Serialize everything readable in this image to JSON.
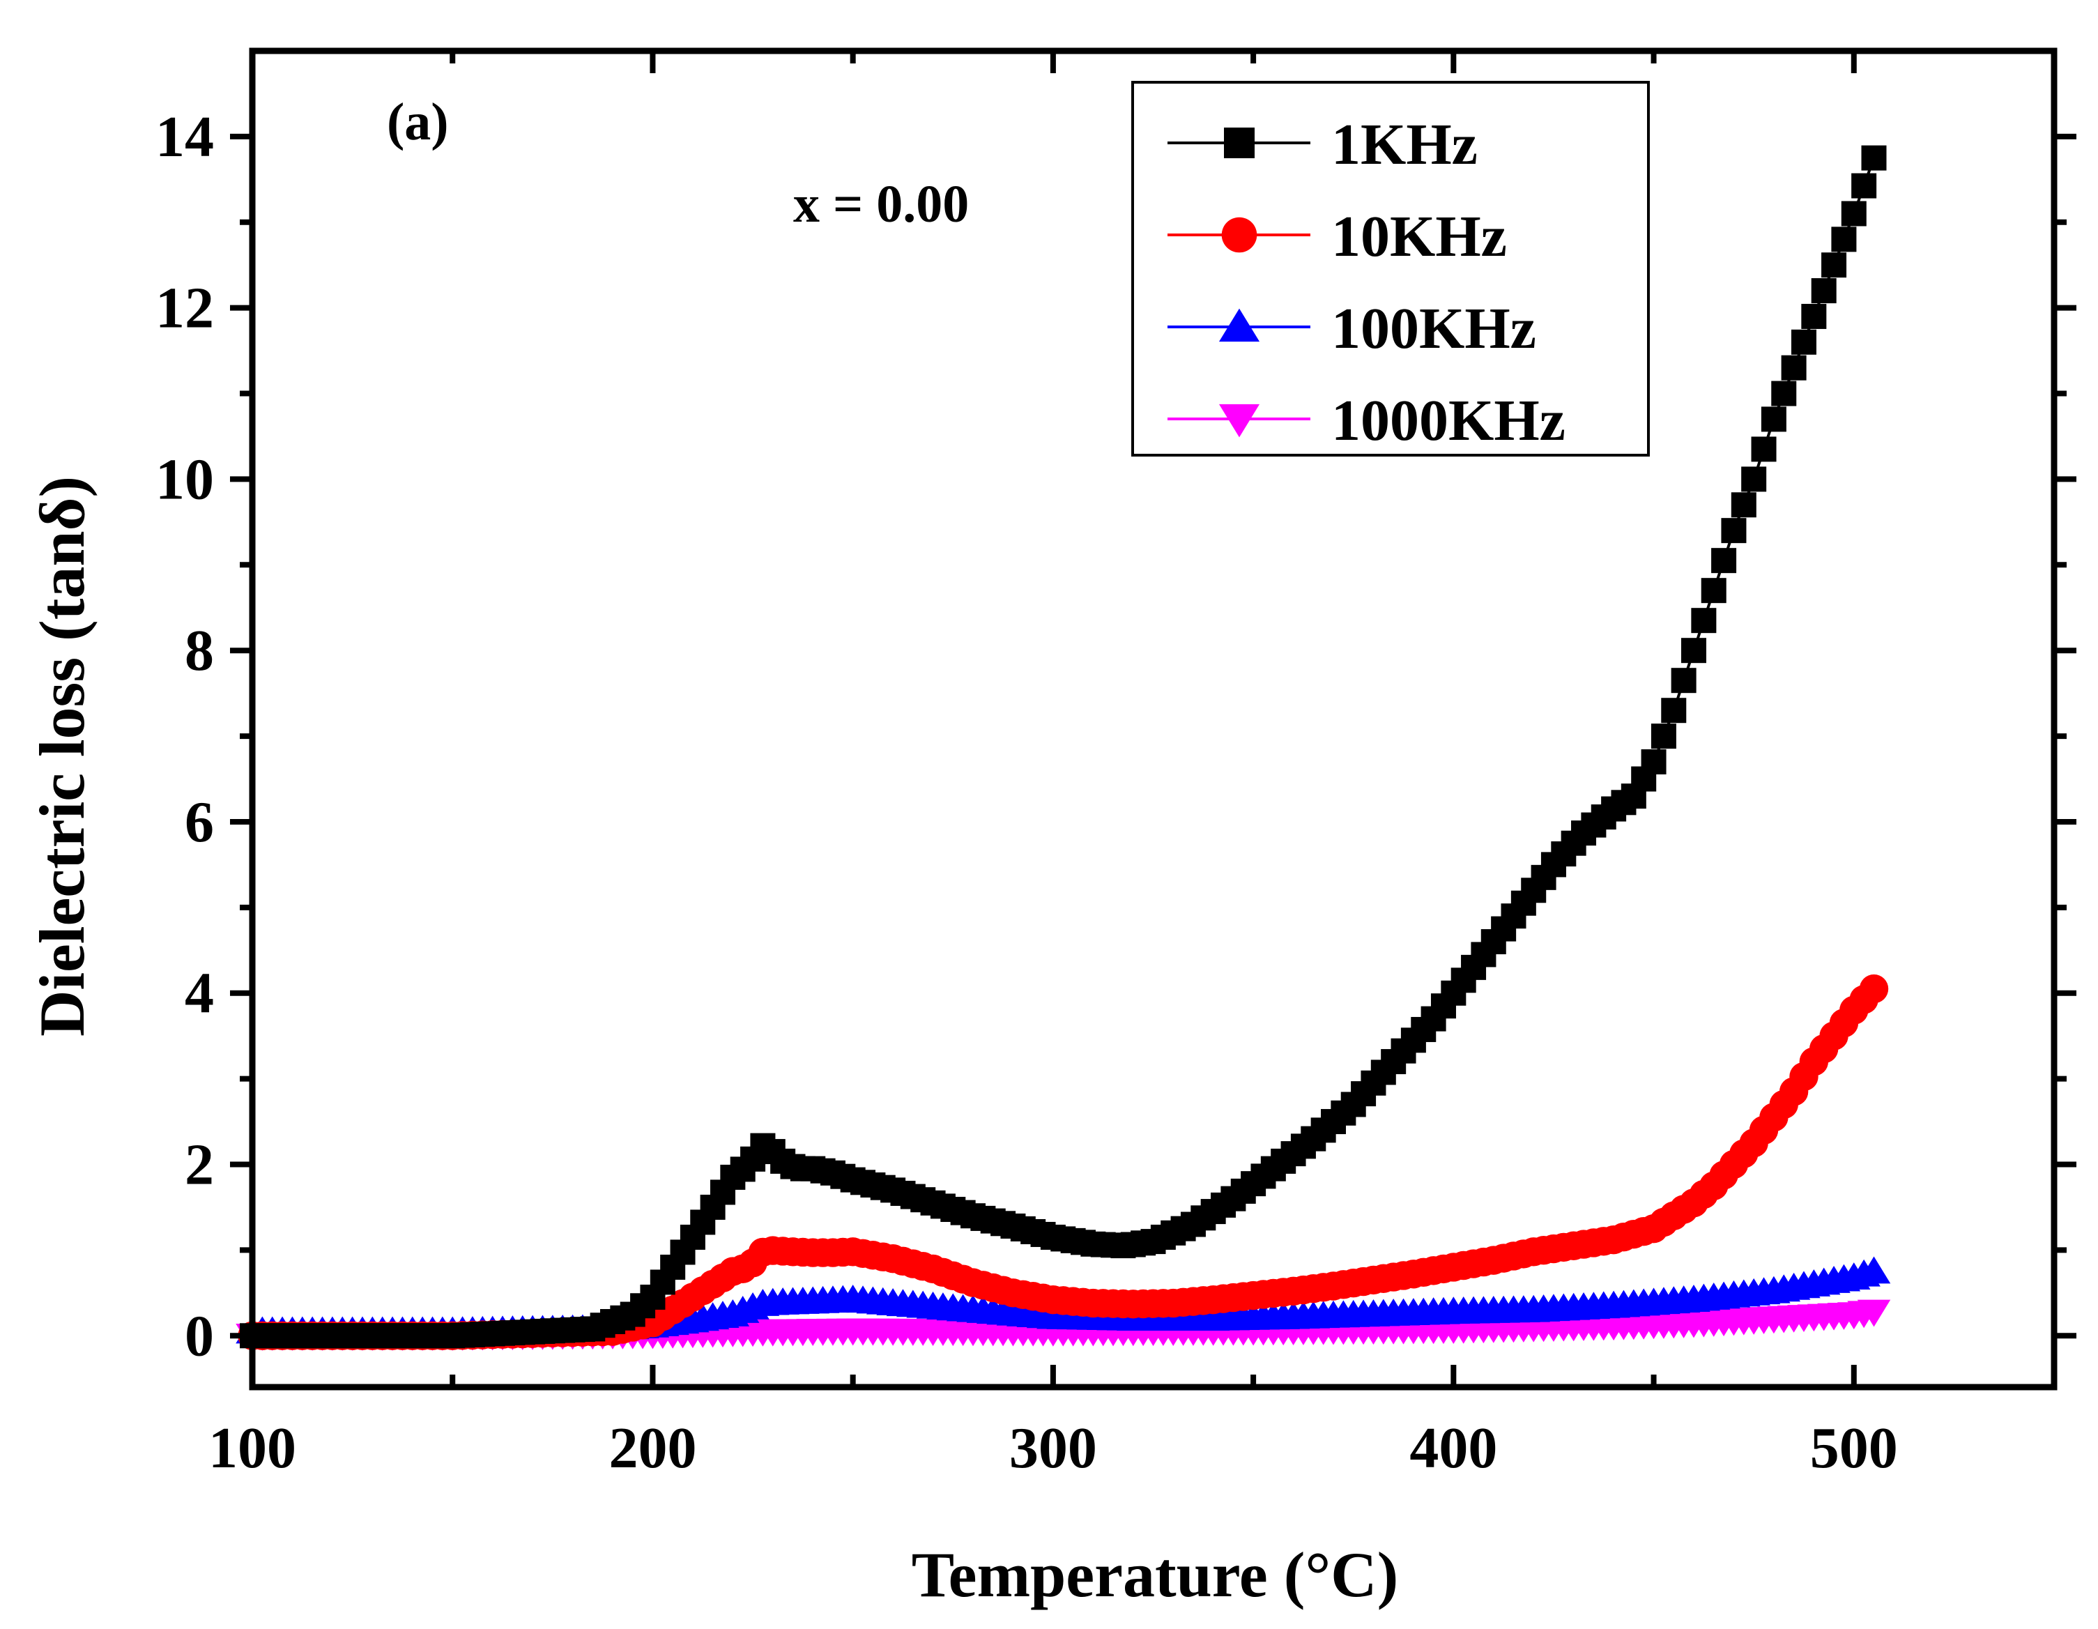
{
  "chart_data": {
    "type": "line",
    "panel_label": "(a)",
    "annotation": "x = 0.00",
    "xlabel": "Temperature (°C)",
    "ylabel": "Dielectric loss (tanδ)",
    "xlim": [
      100,
      550
    ],
    "ylim": [
      -0.6,
      15
    ],
    "xticks": [
      100,
      200,
      300,
      400,
      500
    ],
    "xtick_labels": [
      "100",
      "200",
      "300",
      "400",
      "500"
    ],
    "yticks": [
      0,
      2,
      4,
      6,
      8,
      10,
      12,
      14
    ],
    "ytick_labels": [
      "0",
      "2",
      "4",
      "6",
      "8",
      "10",
      "12",
      "14"
    ],
    "legend_position": "top-right",
    "series": [
      {
        "name": "1KHz",
        "color": "#000000",
        "marker": "square",
        "points": [
          [
            100,
            0.0
          ],
          [
            150,
            0.0
          ],
          [
            185,
            0.08
          ],
          [
            195,
            0.25
          ],
          [
            200,
            0.45
          ],
          [
            205,
            0.8
          ],
          [
            210,
            1.15
          ],
          [
            215,
            1.5
          ],
          [
            220,
            1.85
          ],
          [
            224,
            2.0
          ],
          [
            228,
            2.25
          ],
          [
            232,
            2.05
          ],
          [
            236,
            1.95
          ],
          [
            240,
            1.95
          ],
          [
            245,
            1.9
          ],
          [
            250,
            1.82
          ],
          [
            260,
            1.7
          ],
          [
            270,
            1.55
          ],
          [
            280,
            1.4
          ],
          [
            290,
            1.28
          ],
          [
            300,
            1.15
          ],
          [
            310,
            1.07
          ],
          [
            318,
            1.05
          ],
          [
            325,
            1.1
          ],
          [
            335,
            1.3
          ],
          [
            345,
            1.6
          ],
          [
            355,
            1.95
          ],
          [
            365,
            2.3
          ],
          [
            375,
            2.7
          ],
          [
            385,
            3.2
          ],
          [
            395,
            3.7
          ],
          [
            405,
            4.3
          ],
          [
            415,
            4.9
          ],
          [
            425,
            5.5
          ],
          [
            432,
            5.85
          ],
          [
            440,
            6.15
          ],
          [
            445,
            6.3
          ],
          [
            450,
            6.7
          ],
          [
            455,
            7.3
          ],
          [
            460,
            8.0
          ],
          [
            465,
            8.7
          ],
          [
            470,
            9.4
          ],
          [
            475,
            10.0
          ],
          [
            480,
            10.7
          ],
          [
            485,
            11.3
          ],
          [
            490,
            11.9
          ],
          [
            495,
            12.5
          ],
          [
            500,
            13.1
          ],
          [
            505,
            13.75
          ]
        ]
      },
      {
        "name": "10KHz",
        "color": "#ff0000",
        "marker": "circle",
        "points": [
          [
            100,
            0.0
          ],
          [
            150,
            0.0
          ],
          [
            190,
            0.05
          ],
          [
            200,
            0.15
          ],
          [
            205,
            0.3
          ],
          [
            210,
            0.45
          ],
          [
            215,
            0.6
          ],
          [
            220,
            0.75
          ],
          [
            224,
            0.8
          ],
          [
            228,
            1.0
          ],
          [
            235,
            0.98
          ],
          [
            240,
            0.97
          ],
          [
            245,
            0.97
          ],
          [
            250,
            0.98
          ],
          [
            260,
            0.9
          ],
          [
            270,
            0.78
          ],
          [
            280,
            0.62
          ],
          [
            290,
            0.5
          ],
          [
            300,
            0.42
          ],
          [
            310,
            0.38
          ],
          [
            320,
            0.37
          ],
          [
            330,
            0.38
          ],
          [
            340,
            0.42
          ],
          [
            350,
            0.47
          ],
          [
            360,
            0.52
          ],
          [
            370,
            0.58
          ],
          [
            380,
            0.65
          ],
          [
            390,
            0.72
          ],
          [
            400,
            0.8
          ],
          [
            410,
            0.88
          ],
          [
            420,
            0.98
          ],
          [
            430,
            1.05
          ],
          [
            440,
            1.12
          ],
          [
            450,
            1.25
          ],
          [
            455,
            1.4
          ],
          [
            460,
            1.55
          ],
          [
            465,
            1.75
          ],
          [
            470,
            2.0
          ],
          [
            475,
            2.25
          ],
          [
            480,
            2.55
          ],
          [
            485,
            2.85
          ],
          [
            490,
            3.2
          ],
          [
            495,
            3.5
          ],
          [
            500,
            3.8
          ],
          [
            505,
            4.05
          ]
        ]
      },
      {
        "name": "100KHz",
        "color": "#0000ff",
        "marker": "triangle-up",
        "points": [
          [
            100,
            0.05
          ],
          [
            150,
            0.05
          ],
          [
            190,
            0.08
          ],
          [
            200,
            0.12
          ],
          [
            210,
            0.18
          ],
          [
            220,
            0.25
          ],
          [
            228,
            0.38
          ],
          [
            240,
            0.4
          ],
          [
            250,
            0.42
          ],
          [
            260,
            0.38
          ],
          [
            280,
            0.3
          ],
          [
            300,
            0.22
          ],
          [
            320,
            0.2
          ],
          [
            340,
            0.2
          ],
          [
            360,
            0.22
          ],
          [
            380,
            0.25
          ],
          [
            400,
            0.28
          ],
          [
            420,
            0.3
          ],
          [
            440,
            0.35
          ],
          [
            460,
            0.42
          ],
          [
            480,
            0.52
          ],
          [
            490,
            0.6
          ],
          [
            500,
            0.68
          ],
          [
            505,
            0.75
          ]
        ]
      },
      {
        "name": "1000KHz",
        "color": "#ff00ff",
        "marker": "triangle-down",
        "points": [
          [
            100,
            0.0
          ],
          [
            150,
            0.0
          ],
          [
            200,
            0.02
          ],
          [
            228,
            0.05
          ],
          [
            250,
            0.06
          ],
          [
            300,
            0.05
          ],
          [
            350,
            0.06
          ],
          [
            400,
            0.08
          ],
          [
            440,
            0.12
          ],
          [
            460,
            0.15
          ],
          [
            480,
            0.2
          ],
          [
            500,
            0.25
          ],
          [
            505,
            0.28
          ]
        ]
      }
    ]
  }
}
